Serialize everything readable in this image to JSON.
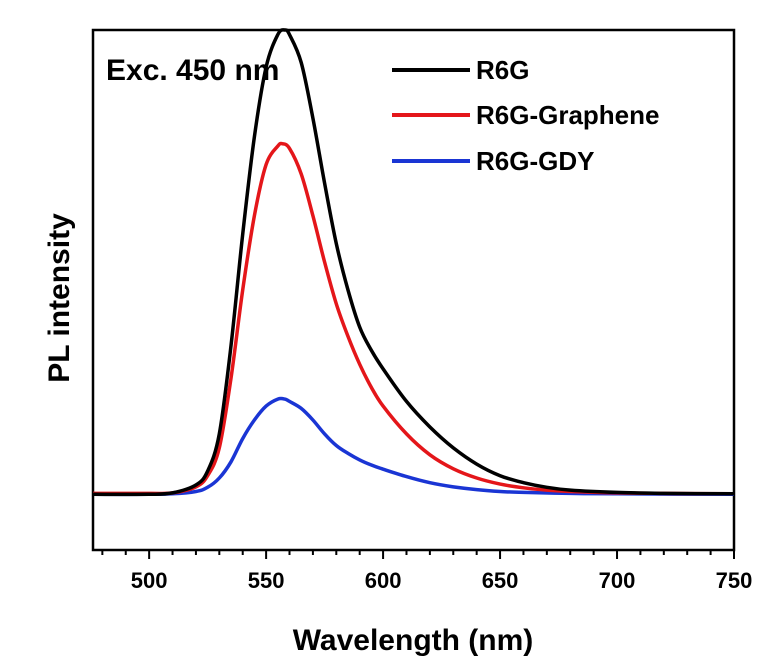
{
  "chart_data": {
    "type": "line",
    "title": "",
    "xlabel": "Wavelength (nm)",
    "ylabel": "PL intensity",
    "xlim": [
      476,
      750
    ],
    "ylim": [
      -0.12,
      1.0
    ],
    "xticks": [
      500,
      550,
      600,
      650,
      700,
      750
    ],
    "x_minor_step": 10,
    "annotation": "Exc. 450 nm",
    "legend_position": "top-right",
    "series": [
      {
        "name": "R6G",
        "color": "#000000",
        "x": [
          476,
          500,
          510,
          520,
          525,
          530,
          535,
          540,
          545,
          550,
          555,
          558,
          560,
          565,
          570,
          575,
          580,
          585,
          590,
          595,
          600,
          610,
          620,
          630,
          640,
          650,
          660,
          670,
          680,
          700,
          720,
          750
        ],
        "y": [
          0,
          0,
          0.003,
          0.02,
          0.05,
          0.13,
          0.32,
          0.56,
          0.77,
          0.92,
          0.99,
          1.0,
          0.99,
          0.93,
          0.81,
          0.67,
          0.54,
          0.44,
          0.36,
          0.31,
          0.27,
          0.2,
          0.145,
          0.1,
          0.065,
          0.04,
          0.025,
          0.015,
          0.009,
          0.004,
          0.002,
          0.001
        ]
      },
      {
        "name": "R6G-Graphene",
        "color": "#e4161a",
        "x": [
          476,
          500,
          510,
          520,
          525,
          530,
          535,
          540,
          545,
          550,
          555,
          557,
          560,
          565,
          570,
          575,
          580,
          585,
          590,
          595,
          600,
          610,
          620,
          630,
          640,
          650,
          660,
          670,
          680,
          700,
          720,
          750
        ],
        "y": [
          0.002,
          0.002,
          0.003,
          0.016,
          0.04,
          0.1,
          0.25,
          0.44,
          0.6,
          0.71,
          0.75,
          0.755,
          0.745,
          0.69,
          0.6,
          0.5,
          0.41,
          0.34,
          0.28,
          0.23,
          0.19,
          0.13,
          0.085,
          0.055,
          0.035,
          0.022,
          0.014,
          0.009,
          0.006,
          0.003,
          0.002,
          0.001
        ]
      },
      {
        "name": "R6G-GDY",
        "color": "#1a35d4",
        "x": [
          476,
          500,
          510,
          520,
          525,
          530,
          535,
          540,
          545,
          550,
          555,
          558,
          560,
          565,
          570,
          575,
          580,
          585,
          590,
          595,
          600,
          610,
          620,
          630,
          640,
          650,
          660,
          680,
          700,
          750
        ],
        "y": [
          0,
          0,
          0.001,
          0.006,
          0.015,
          0.035,
          0.07,
          0.12,
          0.16,
          0.19,
          0.205,
          0.205,
          0.2,
          0.185,
          0.16,
          0.13,
          0.105,
          0.088,
          0.074,
          0.063,
          0.054,
          0.038,
          0.025,
          0.016,
          0.01,
          0.006,
          0.004,
          0.002,
          0.001,
          0
        ]
      }
    ]
  }
}
